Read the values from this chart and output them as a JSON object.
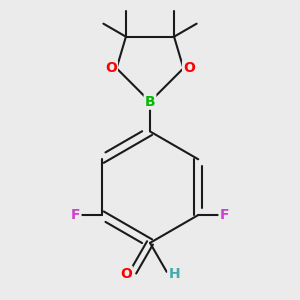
{
  "background_color": "#ebebeb",
  "bond_color": "#1a1a1a",
  "bond_width": 1.5,
  "atom_colors": {
    "O": "#ff0000",
    "B": "#00bb00",
    "F": "#cc44cc",
    "H": "#44aaaa"
  },
  "font_size_atom": 9,
  "fig_width": 3.0,
  "fig_height": 3.0,
  "dpi": 100
}
